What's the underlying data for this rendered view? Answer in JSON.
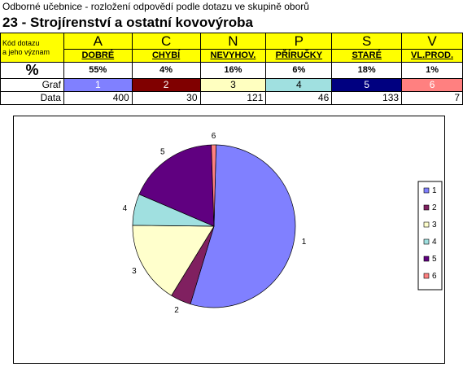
{
  "header": {
    "subtitle": "Odborné učebnice - rozložení odpovědí podle dotazu ve skupině oborů",
    "title": "23 - Strojírenství a ostatní kovovýroba"
  },
  "table": {
    "code_label_1": "Kód dotazu",
    "code_label_2": "a jeho význam",
    "percent_label": "%",
    "graf_label": "Graf",
    "data_label": "Data",
    "columns": [
      {
        "letter": "A",
        "meaning": "DOBRÉ",
        "percent": "55%",
        "graf": "1",
        "data": "400",
        "color": "#8080ff"
      },
      {
        "letter": "C",
        "meaning": "CHYBÍ",
        "percent": "4%",
        "graf": "2",
        "data": "30",
        "color": "#800000"
      },
      {
        "letter": "N",
        "meaning": "NEVYHOV.",
        "percent": "16%",
        "graf": "3",
        "data": "121",
        "color": "#ffffc0"
      },
      {
        "letter": "P",
        "meaning": "PŘÍRUČKY",
        "percent": "6%",
        "graf": "4",
        "data": "46",
        "color": "#a0e0e0"
      },
      {
        "letter": "S",
        "meaning": "STARÉ",
        "percent": "18%",
        "graf": "5",
        "data": "133",
        "color": "#000080"
      },
      {
        "letter": "V",
        "meaning": "VL.PROD.",
        "percent": "1%",
        "graf": "6",
        "data": "7",
        "color": "#ff8080"
      }
    ]
  },
  "chart_data": {
    "type": "pie",
    "categories": [
      "1",
      "2",
      "3",
      "4",
      "5",
      "6"
    ],
    "values": [
      400,
      30,
      121,
      46,
      133,
      7
    ],
    "colors": [
      "#8080ff",
      "#802060",
      "#ffffcc",
      "#a0e0e0",
      "#600080",
      "#ff8080"
    ],
    "legend": [
      "1",
      "2",
      "3",
      "4",
      "5",
      "6"
    ],
    "legend_position": "right"
  }
}
